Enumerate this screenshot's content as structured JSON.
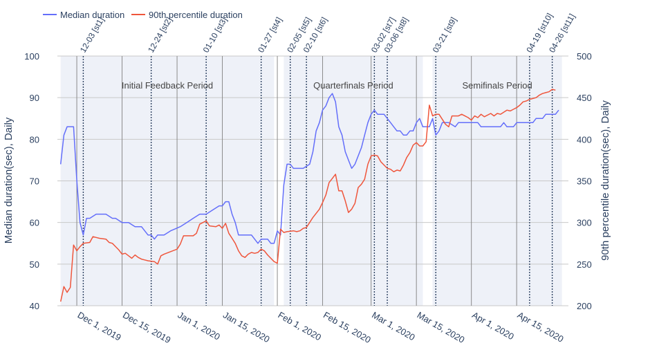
{
  "chart_data": {
    "type": "line",
    "x_start": "2019-11-25",
    "x_range": [
      "2019-11-25",
      "2020-05-01"
    ],
    "y_left": {
      "label": "Median duration(sec), Daily",
      "range": [
        40,
        100
      ],
      "ticks": [
        40,
        50,
        60,
        70,
        80,
        90,
        100
      ]
    },
    "y_right": {
      "label": "90th percentile duration(sec), Daily",
      "range": [
        200,
        500
      ],
      "ticks": [
        200,
        250,
        300,
        350,
        400,
        450,
        500
      ]
    },
    "x_ticks": [
      {
        "date": "2019-12-01",
        "label": "Dec 1, 2019"
      },
      {
        "date": "2019-12-15",
        "label": "Dec 15, 2019"
      },
      {
        "date": "2020-01-01",
        "label": "Jan 1, 2020"
      },
      {
        "date": "2020-01-15",
        "label": "Jan 15, 2020"
      },
      {
        "date": "2020-02-01",
        "label": "Feb 1, 2020"
      },
      {
        "date": "2020-02-15",
        "label": "Feb 15, 2020"
      },
      {
        "date": "2020-03-01",
        "label": "Mar 1, 2020"
      },
      {
        "date": "2020-03-15",
        "label": "Mar 15, 2020"
      },
      {
        "date": "2020-04-01",
        "label": "Apr 1, 2020"
      },
      {
        "date": "2020-04-15",
        "label": "Apr 15, 2020"
      }
    ],
    "periods": [
      {
        "label": "Initial Feedback Period",
        "start": "2019-11-26",
        "end": "2020-01-31"
      },
      {
        "label": "Quarterfinals Period",
        "start": "2020-02-03",
        "end": "2020-03-17"
      },
      {
        "label": "Semifinals Period",
        "start": "2020-03-20",
        "end": "2020-04-29"
      }
    ],
    "stages": [
      {
        "label": "12-03 [st1]",
        "date": "2019-12-03"
      },
      {
        "label": "12-24 [st2]",
        "date": "2019-12-24"
      },
      {
        "label": "01-10 [st3]",
        "date": "2020-01-10"
      },
      {
        "label": "01-27 [st4]",
        "date": "2020-01-27"
      },
      {
        "label": "02-05 [st5]",
        "date": "2020-02-05"
      },
      {
        "label": "02-10 [st6]",
        "date": "2020-02-10"
      },
      {
        "label": "03-02 [st7]",
        "date": "2020-03-02"
      },
      {
        "label": "03-06 [st8]",
        "date": "2020-03-06"
      },
      {
        "label": "03-21 [st9]",
        "date": "2020-03-21"
      },
      {
        "label": "04-19 [st10]",
        "date": "2020-04-19"
      },
      {
        "label": "04-26 [st11]",
        "date": "2020-04-26"
      }
    ],
    "series": [
      {
        "name": "Median duration",
        "axis": "left",
        "color": "#636efa",
        "points": [
          [
            "2019-11-26",
            74
          ],
          [
            "2019-11-27",
            81
          ],
          [
            "2019-11-28",
            83
          ],
          [
            "2019-11-30",
            83
          ],
          [
            "2019-12-01",
            70
          ],
          [
            "2019-12-02",
            60
          ],
          [
            "2019-12-03",
            57
          ],
          [
            "2019-12-04",
            61
          ],
          [
            "2019-12-05",
            61
          ],
          [
            "2019-12-07",
            62
          ],
          [
            "2019-12-10",
            62
          ],
          [
            "2019-12-12",
            61
          ],
          [
            "2019-12-13",
            61
          ],
          [
            "2019-12-15",
            60
          ],
          [
            "2019-12-17",
            60
          ],
          [
            "2019-12-19",
            59
          ],
          [
            "2019-12-21",
            59
          ],
          [
            "2019-12-23",
            57
          ],
          [
            "2019-12-24",
            57
          ],
          [
            "2019-12-25",
            56
          ],
          [
            "2019-12-26",
            57
          ],
          [
            "2019-12-28",
            57
          ],
          [
            "2019-12-30",
            58
          ],
          [
            "2020-01-02",
            59
          ],
          [
            "2020-01-04",
            60
          ],
          [
            "2020-01-06",
            61
          ],
          [
            "2020-01-08",
            62
          ],
          [
            "2020-01-10",
            62
          ],
          [
            "2020-01-12",
            63
          ],
          [
            "2020-01-14",
            64
          ],
          [
            "2020-01-15",
            64
          ],
          [
            "2020-01-16",
            65
          ],
          [
            "2020-01-17",
            65
          ],
          [
            "2020-01-18",
            62
          ],
          [
            "2020-01-19",
            60
          ],
          [
            "2020-01-20",
            57
          ],
          [
            "2020-01-22",
            57
          ],
          [
            "2020-01-24",
            57
          ],
          [
            "2020-01-26",
            55
          ],
          [
            "2020-01-27",
            56
          ],
          [
            "2020-01-29",
            56
          ],
          [
            "2020-01-30",
            55
          ],
          [
            "2020-01-31",
            55
          ],
          [
            "2020-02-01",
            58
          ],
          [
            "2020-02-02",
            57
          ],
          [
            "2020-02-03",
            69
          ],
          [
            "2020-02-04",
            74
          ],
          [
            "2020-02-05",
            74
          ],
          [
            "2020-02-06",
            73
          ],
          [
            "2020-02-08",
            73
          ],
          [
            "2020-02-09",
            73
          ],
          [
            "2020-02-11",
            74
          ],
          [
            "2020-02-12",
            77
          ],
          [
            "2020-02-13",
            82
          ],
          [
            "2020-02-14",
            84
          ],
          [
            "2020-02-15",
            87
          ],
          [
            "2020-02-16",
            88
          ],
          [
            "2020-02-17",
            90
          ],
          [
            "2020-02-18",
            91
          ],
          [
            "2020-02-19",
            89
          ],
          [
            "2020-02-20",
            83
          ],
          [
            "2020-02-21",
            81
          ],
          [
            "2020-02-22",
            77
          ],
          [
            "2020-02-23",
            75
          ],
          [
            "2020-02-24",
            73
          ],
          [
            "2020-02-25",
            74
          ],
          [
            "2020-02-26",
            76
          ],
          [
            "2020-02-27",
            78
          ],
          [
            "2020-02-28",
            81
          ],
          [
            "2020-02-29",
            84
          ],
          [
            "2020-03-01",
            86
          ],
          [
            "2020-03-02",
            87
          ],
          [
            "2020-03-03",
            86
          ],
          [
            "2020-03-05",
            86
          ],
          [
            "2020-03-06",
            85
          ],
          [
            "2020-03-07",
            84
          ],
          [
            "2020-03-08",
            83
          ],
          [
            "2020-03-09",
            82
          ],
          [
            "2020-03-10",
            82
          ],
          [
            "2020-03-11",
            81
          ],
          [
            "2020-03-12",
            81
          ],
          [
            "2020-03-13",
            82
          ],
          [
            "2020-03-14",
            82
          ],
          [
            "2020-03-15",
            84
          ],
          [
            "2020-03-16",
            85
          ],
          [
            "2020-03-17",
            83
          ],
          [
            "2020-03-19",
            83
          ],
          [
            "2020-03-20",
            85
          ],
          [
            "2020-03-21",
            81
          ],
          [
            "2020-03-22",
            82
          ],
          [
            "2020-03-23",
            84
          ],
          [
            "2020-03-25",
            84
          ],
          [
            "2020-03-27",
            83
          ],
          [
            "2020-03-28",
            84
          ],
          [
            "2020-04-03",
            84
          ],
          [
            "2020-04-04",
            83
          ],
          [
            "2020-04-10",
            83
          ],
          [
            "2020-04-11",
            84
          ],
          [
            "2020-04-12",
            83
          ],
          [
            "2020-04-14",
            83
          ],
          [
            "2020-04-15",
            84
          ],
          [
            "2020-04-20",
            84
          ],
          [
            "2020-04-21",
            85
          ],
          [
            "2020-04-23",
            85
          ],
          [
            "2020-04-24",
            86
          ],
          [
            "2020-04-27",
            86
          ],
          [
            "2020-04-28",
            87
          ]
        ]
      },
      {
        "name": "90th percentile duration",
        "axis": "right",
        "color": "#ef553b",
        "points": [
          [
            "2019-11-26",
            205
          ],
          [
            "2019-11-27",
            223
          ],
          [
            "2019-11-28",
            216
          ],
          [
            "2019-11-29",
            222
          ],
          [
            "2019-11-30",
            273
          ],
          [
            "2019-12-01",
            266
          ],
          [
            "2019-12-02",
            271
          ],
          [
            "2019-12-03",
            275
          ],
          [
            "2019-12-05",
            276
          ],
          [
            "2019-12-06",
            283
          ],
          [
            "2019-12-07",
            282
          ],
          [
            "2019-12-08",
            281
          ],
          [
            "2019-12-10",
            280
          ],
          [
            "2019-12-11",
            276
          ],
          [
            "2019-12-12",
            275
          ],
          [
            "2019-12-13",
            271
          ],
          [
            "2019-12-14",
            267
          ],
          [
            "2019-12-15",
            262
          ],
          [
            "2019-12-16",
            263
          ],
          [
            "2019-12-17",
            260
          ],
          [
            "2019-12-18",
            257
          ],
          [
            "2019-12-19",
            261
          ],
          [
            "2019-12-20",
            258
          ],
          [
            "2019-12-21",
            256
          ],
          [
            "2019-12-22",
            255
          ],
          [
            "2019-12-23",
            254
          ],
          [
            "2019-12-25",
            253
          ],
          [
            "2019-12-26",
            250
          ],
          [
            "2019-12-27",
            260
          ],
          [
            "2019-12-28",
            262
          ],
          [
            "2019-12-30",
            265
          ],
          [
            "2020-01-01",
            268
          ],
          [
            "2020-01-02",
            274
          ],
          [
            "2020-01-03",
            284
          ],
          [
            "2020-01-04",
            284
          ],
          [
            "2020-01-06",
            284
          ],
          [
            "2020-01-07",
            287
          ],
          [
            "2020-01-08",
            298
          ],
          [
            "2020-01-10",
            302
          ],
          [
            "2020-01-11",
            296
          ],
          [
            "2020-01-13",
            295
          ],
          [
            "2020-01-14",
            297
          ],
          [
            "2020-01-15",
            293
          ],
          [
            "2020-01-16",
            299
          ],
          [
            "2020-01-17",
            287
          ],
          [
            "2020-01-18",
            281
          ],
          [
            "2020-01-19",
            275
          ],
          [
            "2020-01-20",
            266
          ],
          [
            "2020-01-21",
            260
          ],
          [
            "2020-01-22",
            258
          ],
          [
            "2020-01-23",
            262
          ],
          [
            "2020-01-24",
            264
          ],
          [
            "2020-01-25",
            263
          ],
          [
            "2020-01-26",
            264
          ],
          [
            "2020-01-27",
            268
          ],
          [
            "2020-01-28",
            266
          ],
          [
            "2020-01-29",
            261
          ],
          [
            "2020-01-31",
            253
          ],
          [
            "2020-02-01",
            251
          ],
          [
            "2020-02-02",
            292
          ],
          [
            "2020-02-03",
            288
          ],
          [
            "2020-02-04",
            289
          ],
          [
            "2020-02-06",
            290
          ],
          [
            "2020-02-07",
            289
          ],
          [
            "2020-02-08",
            290
          ],
          [
            "2020-02-09",
            293
          ],
          [
            "2020-02-10",
            294
          ],
          [
            "2020-02-11",
            300
          ],
          [
            "2020-02-12",
            306
          ],
          [
            "2020-02-13",
            311
          ],
          [
            "2020-02-14",
            316
          ],
          [
            "2020-02-15",
            324
          ],
          [
            "2020-02-16",
            333
          ],
          [
            "2020-02-17",
            348
          ],
          [
            "2020-02-18",
            353
          ],
          [
            "2020-02-19",
            358
          ],
          [
            "2020-02-20",
            338
          ],
          [
            "2020-02-21",
            338
          ],
          [
            "2020-02-22",
            326
          ],
          [
            "2020-02-23",
            312
          ],
          [
            "2020-02-24",
            316
          ],
          [
            "2020-02-25",
            323
          ],
          [
            "2020-02-26",
            342
          ],
          [
            "2020-02-27",
            346
          ],
          [
            "2020-02-28",
            352
          ],
          [
            "2020-02-29",
            370
          ],
          [
            "2020-03-01",
            380
          ],
          [
            "2020-03-02",
            381
          ],
          [
            "2020-03-03",
            380
          ],
          [
            "2020-03-04",
            373
          ],
          [
            "2020-03-05",
            369
          ],
          [
            "2020-03-06",
            365
          ],
          [
            "2020-03-07",
            364
          ],
          [
            "2020-03-08",
            361
          ],
          [
            "2020-03-09",
            363
          ],
          [
            "2020-03-10",
            362
          ],
          [
            "2020-03-11",
            369
          ],
          [
            "2020-03-12",
            378
          ],
          [
            "2020-03-13",
            384
          ],
          [
            "2020-03-14",
            393
          ],
          [
            "2020-03-15",
            396
          ],
          [
            "2020-03-16",
            392
          ],
          [
            "2020-03-17",
            392
          ],
          [
            "2020-03-18",
            397
          ],
          [
            "2020-03-19",
            441
          ],
          [
            "2020-03-20",
            428
          ],
          [
            "2020-03-21",
            430
          ],
          [
            "2020-03-22",
            430
          ],
          [
            "2020-03-24",
            418
          ],
          [
            "2020-03-25",
            415
          ],
          [
            "2020-03-26",
            428
          ],
          [
            "2020-03-28",
            428
          ],
          [
            "2020-03-29",
            430
          ],
          [
            "2020-03-30",
            428
          ],
          [
            "2020-03-31",
            426
          ],
          [
            "2020-04-01",
            423
          ],
          [
            "2020-04-02",
            428
          ],
          [
            "2020-04-03",
            426
          ],
          [
            "2020-04-04",
            430
          ],
          [
            "2020-04-05",
            427
          ],
          [
            "2020-04-07",
            431
          ],
          [
            "2020-04-08",
            428
          ],
          [
            "2020-04-09",
            431
          ],
          [
            "2020-04-10",
            430
          ],
          [
            "2020-04-12",
            435
          ],
          [
            "2020-04-13",
            434
          ],
          [
            "2020-04-14",
            436
          ],
          [
            "2020-04-15",
            438
          ],
          [
            "2020-04-16",
            441
          ],
          [
            "2020-04-17",
            445
          ],
          [
            "2020-04-18",
            446
          ],
          [
            "2020-04-19",
            448
          ],
          [
            "2020-04-20",
            449
          ],
          [
            "2020-04-21",
            450
          ],
          [
            "2020-04-22",
            453
          ],
          [
            "2020-04-23",
            455
          ],
          [
            "2020-04-24",
            456
          ],
          [
            "2020-04-25",
            457
          ],
          [
            "2020-04-26",
            460
          ],
          [
            "2020-04-27",
            459
          ]
        ]
      }
    ],
    "legend": "top-left"
  }
}
